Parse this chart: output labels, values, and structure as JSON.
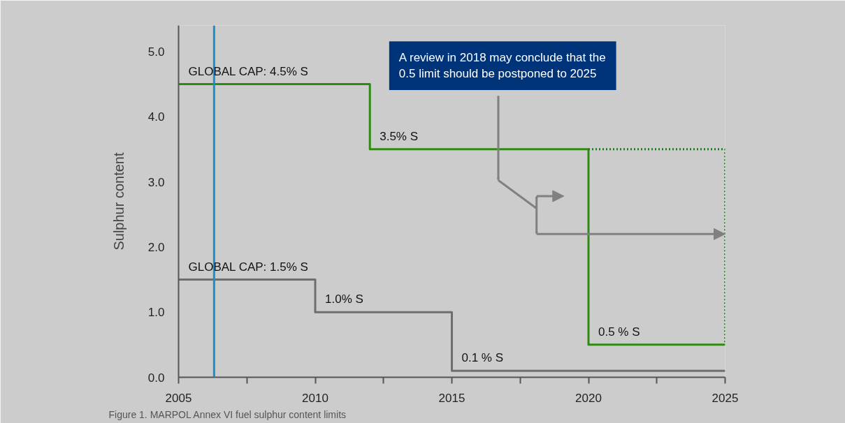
{
  "chart_data": {
    "type": "step",
    "ylabel": "Sulphur content",
    "xlim": [
      2005,
      2025
    ],
    "ylim": [
      0,
      5.4
    ],
    "xticks": [
      2005,
      {
        "value": 2007.5,
        "label": null
      },
      2010,
      {
        "value": 2012.5,
        "label": null
      },
      2015,
      {
        "value": 2017.5,
        "label": null
      },
      2020,
      {
        "value": 2022.5,
        "label": null
      },
      2025
    ],
    "yticks": [
      {
        "value": 0,
        "label": "0.0"
      },
      {
        "value": 1,
        "label": "1.0"
      },
      {
        "value": 2,
        "label": "2.0"
      },
      {
        "value": 3,
        "label": "3.0"
      },
      {
        "value": 4,
        "label": "4.0"
      },
      {
        "value": 5,
        "label": "5.0"
      }
    ],
    "grid": false,
    "marker": "none",
    "series": [
      {
        "color": "#2f8a12",
        "line_style": "solid",
        "x": [
          2005,
          2012,
          2020,
          2025
        ],
        "values": [
          4.5,
          3.5,
          0.5,
          0.5
        ]
      },
      {
        "type": "line",
        "color": "#1e7a1e",
        "line_style": "dotted",
        "x": [
          2020,
          2025,
          2025
        ],
        "values": [
          3.5,
          3.5,
          0.5
        ]
      },
      {
        "color": "#6e6e6e",
        "line_style": "solid",
        "x": [
          2005,
          2010,
          2015,
          2025
        ],
        "values": [
          1.5,
          1.0,
          0.1,
          0.1
        ]
      }
    ],
    "ref_lines": [
      {
        "axis": "x",
        "value": 2006.3,
        "label": null,
        "color": "#1a8fc8"
      }
    ],
    "annotations": [
      {
        "text": "GLOBAL CAP: 4.5% S",
        "x": 2005,
        "y": 4.5
      },
      {
        "text": "3.5% S",
        "x": 2012,
        "y": 3.5
      },
      {
        "text": "0.5 % S",
        "x": 2020,
        "y": 0.5
      },
      {
        "text": "GLOBAL CAP: 1.5% S",
        "x": 2005,
        "y": 1.5
      },
      {
        "text": "1.0% S",
        "x": 2010,
        "y": 1.0
      },
      {
        "text": "0.1 % S",
        "x": 2015,
        "y": 0.1
      },
      "A review in 2018 may conclude that the\n0.5 limit should be postponed to 2025",
      "Figure 1.  MARPOL Annex VI fuel sulphur content limits"
    ]
  }
}
